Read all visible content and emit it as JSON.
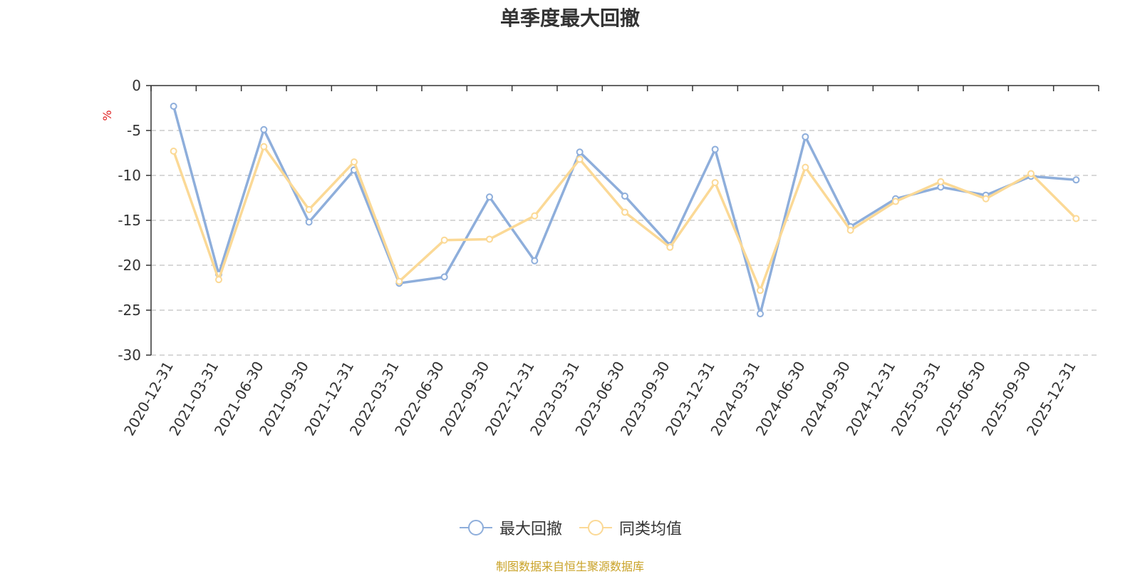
{
  "chart_data": {
    "type": "line",
    "title": "单季度最大回撤",
    "ylabel": "%",
    "ylim": [
      -30,
      0
    ],
    "yticks": [
      0,
      -5,
      -10,
      -15,
      -20,
      -25,
      -30
    ],
    "grid": true,
    "legend_placement": "bottom-center",
    "categories": [
      "2020-12-31",
      "2021-03-31",
      "2021-06-30",
      "2021-09-30",
      "2021-12-31",
      "2022-03-31",
      "2022-06-30",
      "2022-09-30",
      "2022-12-31",
      "2023-03-31",
      "2023-06-30",
      "2023-09-30",
      "2023-12-31",
      "2024-03-31",
      "2024-06-30",
      "2024-09-30",
      "2024-12-31",
      "2025-03-31",
      "2025-06-30",
      "2025-09-30",
      "2025-12-31"
    ],
    "series": [
      {
        "name": "最大回撤",
        "color": "#8eaedb",
        "values": [
          -2.3,
          -21.0,
          -4.9,
          -15.2,
          -9.4,
          -22.0,
          -21.3,
          -12.4,
          -19.5,
          -7.4,
          -12.3,
          -17.8,
          -7.1,
          -25.4,
          -5.7,
          -15.7,
          -12.6,
          -11.3,
          -12.2,
          -10.1,
          -10.5
        ]
      },
      {
        "name": "同类均值",
        "color": "#fbd996",
        "values": [
          -7.3,
          -21.6,
          -6.8,
          -13.8,
          -8.5,
          -21.8,
          -17.2,
          -17.1,
          -14.5,
          -8.2,
          -14.1,
          -18.0,
          -10.8,
          -22.8,
          -9.1,
          -16.1,
          -12.9,
          -10.7,
          -12.6,
          -9.8,
          -14.8
        ]
      }
    ]
  },
  "source_note": "制图数据来自恒生聚源数据库",
  "colors": {
    "axis": "#333333",
    "grid": "#cccccc",
    "ylabel": "#e02020",
    "source": "#c9a227"
  }
}
